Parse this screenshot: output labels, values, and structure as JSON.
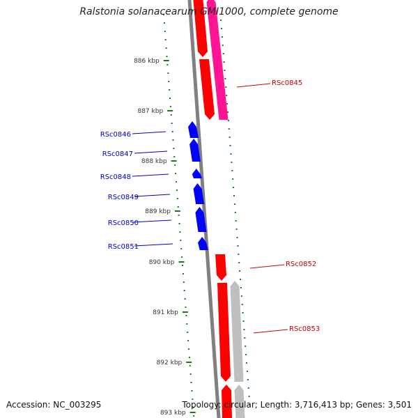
{
  "title": "Ralstonia solanacearum GMI1000, complete genome",
  "footer": {
    "accession": "Accession: NC_003295",
    "summary": "Topology: circular; Length: 3,716,413 bp; Genes: 3,501"
  },
  "ticks": [
    "886 kbp",
    "887 kbp",
    "888 kbp",
    "889 kbp",
    "890 kbp",
    "891 kbp",
    "892 kbp",
    "893 kbp"
  ],
  "genes_reverse": [
    "RSc0846",
    "RSc0847",
    "RSc0848",
    "RSc0849",
    "RSc0850",
    "RSc0851"
  ],
  "genes_forward": [
    "RSc0845",
    "RSc0852",
    "RSc0853"
  ],
  "colors": {
    "backbone": "#808080",
    "forward_gene": "#ff0000",
    "reverse_gene": "#0000ff",
    "cds_pink": "#ff1493",
    "cds_gray": "#bfbfbf",
    "tick_marks": "#1a7a1a",
    "label_blue": "#0000cc",
    "label_red": "#cc0000"
  }
}
